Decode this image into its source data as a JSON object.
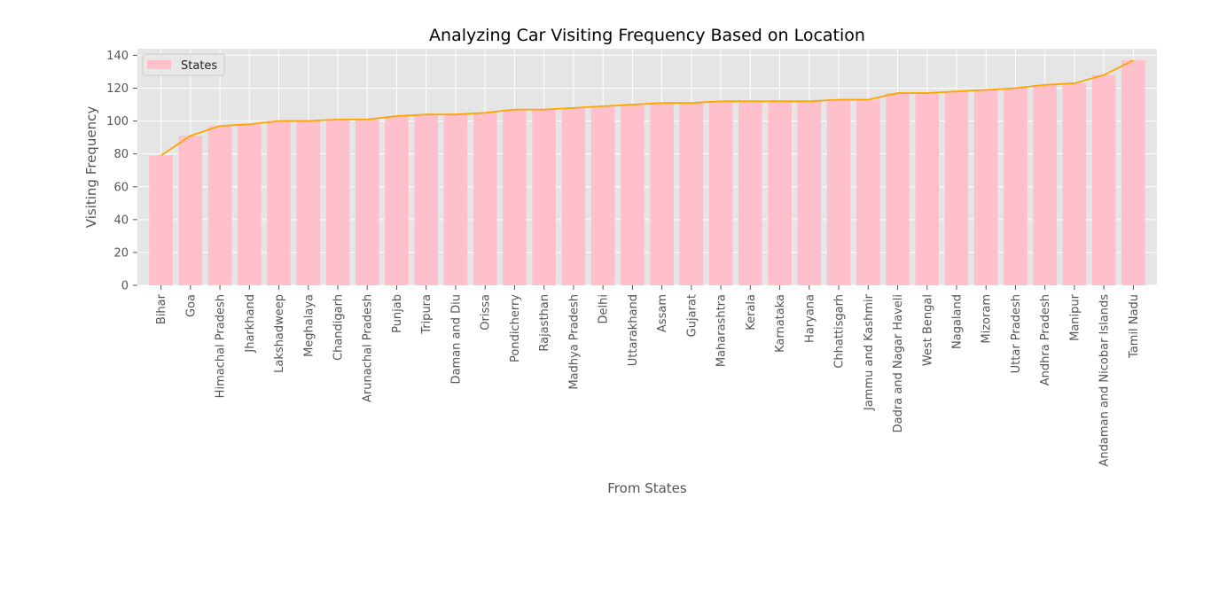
{
  "chart_data": {
    "type": "bar",
    "title": "Analyzing Car Visiting Frequency Based on Location",
    "xlabel": "From States",
    "ylabel": "Visiting Frequency",
    "ylim": [
      0,
      144
    ],
    "yticks": [
      0,
      20,
      40,
      60,
      80,
      100,
      120,
      140
    ],
    "grid": true,
    "legend_position": "top-left",
    "categories": [
      "Bihar",
      "Goa",
      "Himachal Pradesh",
      "Jharkhand",
      "Lakshadweep",
      "Meghalaya",
      "Chandigarh",
      "Arunachal Pradesh",
      "Punjab",
      "Tripura",
      "Daman and Diu",
      "Orissa",
      "Pondicherry",
      "Rajasthan",
      "Madhya Pradesh",
      "Delhi",
      "Uttarakhand",
      "Assam",
      "Gujarat",
      "Maharashtra",
      "Kerala",
      "Karnataka",
      "Haryana",
      "Chhattisgarh",
      "Jammu and Kashmir",
      "Dadra and Nagar Haveli",
      "West Bengal",
      "Nagaland",
      "Mizoram",
      "Uttar Pradesh",
      "Andhra Pradesh",
      "Manipur",
      "Andaman and Nicobar Islands",
      "Tamil Nadu"
    ],
    "series": [
      {
        "name": "States",
        "kind": "bar",
        "color": "#ffc0cb",
        "values": [
          79,
          91,
          97,
          98,
          100,
          100,
          101,
          101,
          103,
          104,
          104,
          105,
          107,
          107,
          108,
          109,
          110,
          111,
          111,
          112,
          112,
          112,
          112,
          113,
          113,
          117,
          117,
          118,
          119,
          120,
          122,
          123,
          128,
          137
        ]
      },
      {
        "kind": "line",
        "color": "#ffa500",
        "values": [
          79,
          91,
          97,
          98,
          100,
          100,
          101,
          101,
          103,
          104,
          104,
          105,
          107,
          107,
          108,
          109,
          110,
          111,
          111,
          112,
          112,
          112,
          112,
          113,
          113,
          117,
          117,
          118,
          119,
          120,
          122,
          123,
          128,
          137
        ]
      }
    ],
    "colors": {
      "plot_background": "#e5e5e5",
      "grid": "#ffffff",
      "tick_label": "#555555",
      "axis_label": "#555555",
      "title": "#000000"
    }
  }
}
